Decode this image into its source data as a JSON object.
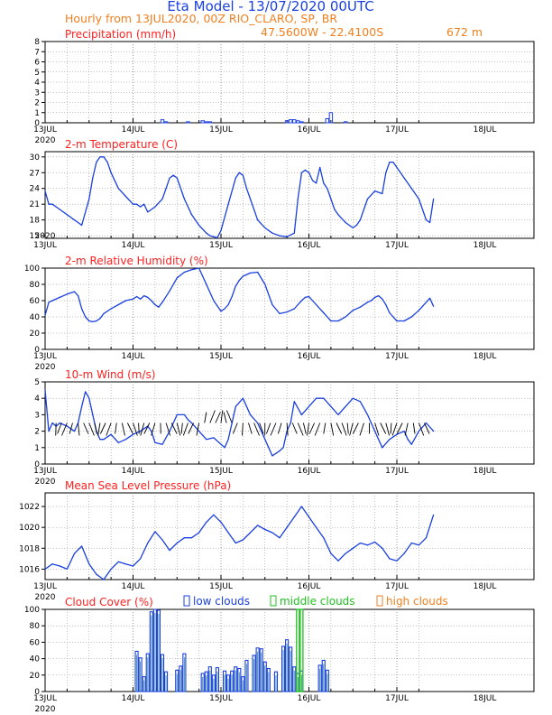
{
  "header": {
    "title": "Eta Model - 13/07/2020 00UTC",
    "subtitle": "Hourly from 13JUL2020, 00Z  RIO_CLARO, SP, BR",
    "coords": "47.5600W - 22.4100S",
    "elevation": "672  m"
  },
  "colors": {
    "title": "#1a3fe0",
    "subtitle": "#f08020",
    "panel_title": "#ff2020",
    "line": "#1a3fe0",
    "low": "#1a3fe0",
    "middle": "#20c020",
    "high": "#f08020",
    "grid": "#808080"
  },
  "x_axis": {
    "day_labels": [
      "13JUL",
      "14JUL",
      "15JUL",
      "16JUL",
      "17JUL",
      "18JUL"
    ],
    "year_label": "2020"
  },
  "chart_data": [
    {
      "type": "bar",
      "title": "Precipitation (mm/h)",
      "ylim": [
        0,
        8
      ],
      "yticks": [
        0,
        1,
        2,
        3,
        4,
        5,
        6,
        7,
        8
      ],
      "x": [
        32,
        33,
        39,
        43,
        44,
        45,
        66,
        67,
        68,
        69,
        70,
        77,
        78,
        82
      ],
      "values": [
        0.3,
        0.1,
        0.1,
        0.2,
        0.1,
        0.1,
        0.2,
        0.3,
        0.3,
        0.2,
        0.1,
        0.4,
        1.0,
        0.1
      ]
    },
    {
      "type": "line",
      "title": "2-m Temperature (C)",
      "ylim": [
        14.5,
        31
      ],
      "yticks": [
        15,
        18,
        21,
        24,
        27,
        30
      ],
      "x": [
        0,
        1,
        2,
        4,
        6,
        8,
        9,
        10,
        12,
        13,
        14,
        15,
        16,
        17,
        18,
        20,
        22,
        24,
        25,
        26,
        27,
        28,
        30,
        32,
        33,
        34,
        35,
        36,
        38,
        40,
        42,
        44,
        45,
        46,
        47,
        48,
        50,
        52,
        53,
        54,
        55,
        56,
        57,
        58,
        60,
        62,
        64,
        66,
        68,
        69,
        70,
        71,
        72,
        73,
        74,
        75,
        76,
        77,
        78,
        79,
        80,
        82,
        84,
        85,
        86,
        87,
        88,
        90,
        92,
        93,
        94,
        95,
        96,
        98,
        100,
        102,
        104,
        105,
        106
      ],
      "values": [
        23.5,
        21.0,
        21.0,
        20.0,
        19.0,
        18.0,
        17.5,
        17.0,
        22.0,
        26.0,
        29.0,
        30.0,
        30.0,
        29.0,
        27.0,
        24.0,
        22.5,
        21.0,
        21.0,
        20.5,
        21.0,
        19.5,
        20.5,
        22.0,
        24.0,
        26.0,
        26.5,
        26.0,
        22.0,
        19.0,
        17.0,
        15.5,
        15.0,
        14.8,
        14.6,
        16.0,
        21.0,
        26.0,
        27.0,
        26.5,
        24.0,
        22.0,
        20.0,
        18.0,
        16.5,
        15.5,
        15.0,
        14.8,
        15.5,
        22.0,
        27.0,
        27.5,
        27.0,
        25.5,
        25.0,
        28.0,
        25.0,
        24.0,
        22.0,
        20.0,
        19.0,
        17.5,
        16.5,
        17.0,
        18.0,
        20.0,
        22.0,
        23.5,
        23.0,
        27.0,
        29.0,
        29.0,
        28.0,
        26.0,
        24.0,
        22.0,
        18.0,
        17.5,
        22.0
      ]
    },
    {
      "type": "line",
      "title": "2-m Relative Humidity (%)",
      "ylim": [
        0,
        100
      ],
      "yticks": [
        0,
        20,
        40,
        60,
        80,
        100
      ],
      "x": [
        0,
        1,
        2,
        4,
        6,
        8,
        9,
        10,
        11,
        12,
        13,
        14,
        15,
        16,
        18,
        20,
        22,
        24,
        25,
        26,
        27,
        28,
        29,
        30,
        31,
        32,
        34,
        36,
        38,
        40,
        42,
        44,
        46,
        48,
        49,
        50,
        51,
        52,
        53,
        54,
        56,
        58,
        60,
        62,
        64,
        66,
        67,
        68,
        69,
        70,
        71,
        72,
        74,
        76,
        77,
        78,
        80,
        82,
        84,
        86,
        88,
        89,
        90,
        91,
        92,
        93,
        94,
        95,
        96,
        98,
        100,
        102,
        104,
        105,
        106
      ],
      "values": [
        42,
        58,
        60,
        64,
        68,
        71,
        66,
        50,
        40,
        35,
        34,
        35,
        38,
        44,
        50,
        55,
        60,
        62,
        65,
        62,
        66,
        64,
        60,
        55,
        52,
        58,
        72,
        88,
        95,
        98,
        100,
        80,
        60,
        47,
        50,
        55,
        65,
        78,
        85,
        90,
        94,
        95,
        80,
        55,
        44,
        46,
        48,
        50,
        55,
        60,
        64,
        65,
        55,
        45,
        40,
        35,
        35,
        40,
        48,
        52,
        58,
        60,
        64,
        66,
        62,
        55,
        45,
        40,
        35,
        35,
        40,
        48,
        58,
        63,
        53
      ]
    },
    {
      "type": "line",
      "title": "10-m Wind (m/s)",
      "ylim": [
        0,
        5
      ],
      "yticks": [
        0,
        1,
        2,
        3,
        4,
        5
      ],
      "x": [
        0,
        1,
        2,
        3,
        4,
        6,
        8,
        9,
        10,
        11,
        12,
        13,
        14,
        15,
        16,
        18,
        20,
        22,
        24,
        26,
        28,
        29,
        30,
        32,
        34,
        36,
        38,
        39,
        40,
        42,
        44,
        46,
        48,
        49,
        50,
        51,
        52,
        54,
        56,
        58,
        60,
        62,
        64,
        65,
        66,
        67,
        68,
        70,
        72,
        74,
        76,
        78,
        80,
        82,
        84,
        86,
        88,
        90,
        92,
        94,
        96,
        98,
        99,
        100,
        102,
        104,
        106
      ],
      "values": [
        4.5,
        2.0,
        2.5,
        2.3,
        2.5,
        2.3,
        2.0,
        2.5,
        3.5,
        4.4,
        4.0,
        3.0,
        2.0,
        1.5,
        1.5,
        1.8,
        1.3,
        1.5,
        1.8,
        2.0,
        2.3,
        2.0,
        1.3,
        1.2,
        2.0,
        3.0,
        3.0,
        2.7,
        2.5,
        2.0,
        1.5,
        1.6,
        1.2,
        1.0,
        1.5,
        2.5,
        3.5,
        4.0,
        3.0,
        2.5,
        1.5,
        0.5,
        0.8,
        1.0,
        2.0,
        2.5,
        3.8,
        3.0,
        3.5,
        4.0,
        4.0,
        3.5,
        3.0,
        3.5,
        4.0,
        3.8,
        3.0,
        2.0,
        1.0,
        1.5,
        1.8,
        2.0,
        1.5,
        1.2,
        2.0,
        2.5,
        2.0
      ]
    },
    {
      "type": "line",
      "title": "Mean Sea Level Pressure (hPa)",
      "ylim": [
        1015,
        1023.3
      ],
      "yticks": [
        1016,
        1018,
        1020,
        1022
      ],
      "x": [
        0,
        2,
        4,
        6,
        8,
        10,
        12,
        14,
        16,
        18,
        20,
        22,
        24,
        26,
        28,
        30,
        32,
        34,
        36,
        38,
        40,
        42,
        44,
        46,
        48,
        50,
        52,
        54,
        56,
        58,
        60,
        62,
        64,
        66,
        68,
        70,
        72,
        74,
        76,
        78,
        80,
        82,
        84,
        86,
        88,
        90,
        92,
        94,
        96,
        98,
        100,
        102,
        104,
        106
      ],
      "values": [
        1016.0,
        1016.5,
        1016.3,
        1016.0,
        1017.5,
        1018.2,
        1016.5,
        1015.5,
        1015.0,
        1016.0,
        1016.7,
        1016.5,
        1016.3,
        1017.0,
        1018.5,
        1019.6,
        1018.8,
        1017.8,
        1018.5,
        1019.0,
        1019.0,
        1019.5,
        1020.5,
        1021.2,
        1020.5,
        1019.5,
        1018.5,
        1018.8,
        1019.5,
        1020.2,
        1019.8,
        1019.5,
        1019.0,
        1020.0,
        1021.0,
        1022.0,
        1021.0,
        1020.0,
        1019.0,
        1017.5,
        1016.8,
        1017.5,
        1018.0,
        1018.5,
        1018.3,
        1018.6,
        1018.0,
        1017.0,
        1016.8,
        1017.5,
        1018.5,
        1018.3,
        1019.0,
        1021.2
      ]
    },
    {
      "type": "bar",
      "title": "Cloud Cover (%)",
      "legend": [
        "low clouds",
        "middle clouds",
        "high clouds"
      ],
      "ylim": [
        0,
        100
      ],
      "yticks": [
        0,
        20,
        40,
        60,
        80,
        100
      ],
      "x": [
        25,
        26,
        27,
        28,
        29,
        30,
        31,
        32,
        33,
        36,
        37,
        38,
        43,
        44,
        45,
        46,
        47,
        49,
        50,
        51,
        52,
        53,
        54,
        55,
        57,
        58,
        59,
        60,
        61,
        63,
        65,
        66,
        67,
        68,
        69,
        70,
        75,
        76,
        77
      ],
      "values": [
        49,
        41,
        18,
        46,
        97,
        100,
        99,
        45,
        24,
        26,
        31,
        46,
        22,
        24,
        30,
        20,
        29,
        25,
        20,
        25,
        30,
        28,
        18,
        38,
        44,
        53,
        52,
        36,
        28,
        24,
        55,
        63,
        54,
        30,
        22,
        25,
        32,
        38,
        26
      ],
      "middle_x": [
        69,
        70
      ],
      "middle_values": [
        100,
        100
      ]
    }
  ]
}
